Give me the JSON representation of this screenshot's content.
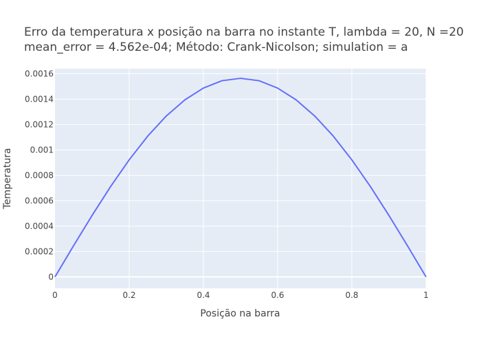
{
  "chart_data": {
    "type": "line",
    "title_line1": "Erro da temperatura x posição na barra no instante T, lambda = 20, N =20",
    "title_line2": "mean_error = 4.562e-04; Método: Crank-Nicolson; simulation = a",
    "xlabel": "Posição na barra",
    "ylabel": "Temperatura",
    "xlim": [
      0,
      1
    ],
    "ylim": [
      -9e-05,
      0.00164
    ],
    "xticks": [
      0,
      0.2,
      0.4,
      0.6,
      0.8,
      1
    ],
    "xtick_labels": [
      "0",
      "0.2",
      "0.4",
      "0.6",
      "0.8",
      "1"
    ],
    "yticks": [
      0,
      0.0002,
      0.0004,
      0.0006,
      0.0008,
      0.001,
      0.0012,
      0.0014,
      0.0016
    ],
    "ytick_labels": [
      "0",
      "0.0002",
      "0.0004",
      "0.0006",
      "0.0008",
      "0.001",
      "0.0012",
      "0.0014",
      "0.0016"
    ],
    "grid": true,
    "colors": {
      "plot_background": "#e5ecf6",
      "grid": "#ffffff",
      "line": "#636efa",
      "text": "#444444",
      "title": "#444444"
    },
    "series": [
      {
        "x": [
          0,
          0.05,
          0.1,
          0.15,
          0.2,
          0.25,
          0.3,
          0.35,
          0.4,
          0.45,
          0.5,
          0.55,
          0.6,
          0.65,
          0.7,
          0.75,
          0.8,
          0.85,
          0.9,
          0.95,
          1
        ],
        "y": [
          0,
          0.000245,
          0.000484,
          0.000712,
          0.000922,
          0.001109,
          0.001267,
          0.001394,
          0.001487,
          0.001545,
          0.001564,
          0.001545,
          0.001487,
          0.001394,
          0.001267,
          0.001109,
          0.000922,
          0.000712,
          0.000484,
          0.000245,
          0
        ]
      }
    ]
  }
}
